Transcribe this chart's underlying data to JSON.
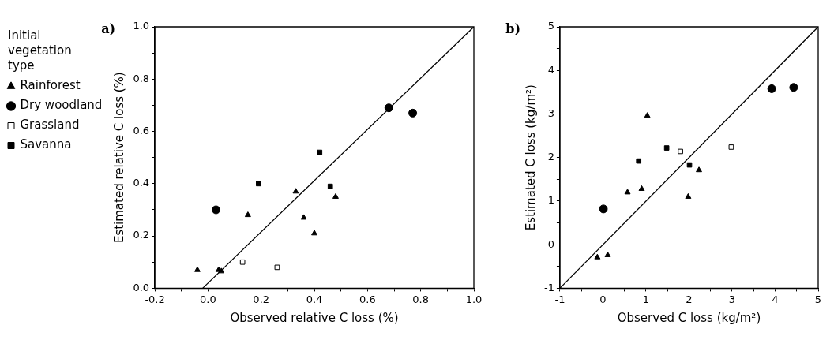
{
  "chart_data": [
    {
      "type": "scatter",
      "title": "a)",
      "xlabel": "Observed relative C loss (%)",
      "ylabel": "Estimated relative C loss (%)",
      "legend_title": "Initial vegetation type",
      "legend": "left",
      "grid": false,
      "xlim": [
        -0.2,
        1.0
      ],
      "ylim": [
        0.0,
        1.0
      ],
      "xticks": [
        {
          "value": -0.2,
          "label": "-0.2"
        },
        {
          "value": -0.1,
          "label": null
        },
        {
          "value": 0,
          "label": "0.0"
        },
        {
          "value": 0.1,
          "label": null
        },
        {
          "value": 0.2,
          "label": "0.2"
        },
        {
          "value": 0.3,
          "label": null
        },
        {
          "value": 0.4,
          "label": "0.4"
        },
        {
          "value": 0.5,
          "label": null
        },
        {
          "value": 0.6,
          "label": "0.6"
        },
        {
          "value": 0.7,
          "label": null
        },
        {
          "value": 0.8,
          "label": "0.8"
        },
        {
          "value": 0.9,
          "label": null
        },
        {
          "value": 1.0,
          "label": "1.0"
        }
      ],
      "yticks": [
        {
          "value": 0,
          "label": "0.0"
        },
        {
          "value": 0.1,
          "label": null
        },
        {
          "value": 0.2,
          "label": "0.2"
        },
        {
          "value": 0.3,
          "label": null
        },
        {
          "value": 0.4,
          "label": "0.4"
        },
        {
          "value": 0.5,
          "label": null
        },
        {
          "value": 0.6,
          "label": "0.6"
        },
        {
          "value": 0.7,
          "label": null
        },
        {
          "value": 0.8,
          "label": "0.8"
        },
        {
          "value": 0.9,
          "label": null
        },
        {
          "value": 1.0,
          "label": "1.0"
        }
      ],
      "series": [
        {
          "name": "Rainforest",
          "color": "#000000",
          "marker": "triangle",
          "x": [
            -0.04,
            0.04,
            0.05,
            0.15,
            0.33,
            0.36,
            0.4,
            0.48
          ],
          "values": [
            0.07,
            0.07,
            0.065,
            0.28,
            0.37,
            0.27,
            0.21,
            0.35
          ]
        },
        {
          "name": "Dry woodland",
          "color": "#000000",
          "marker": "circle",
          "x": [
            0.03,
            0.68,
            0.77
          ],
          "values": [
            0.3,
            0.69,
            0.67
          ]
        },
        {
          "name": "Grassland",
          "color": "#ffffff",
          "marker": "square",
          "x": [
            0.13,
            0.26
          ],
          "values": [
            0.1,
            0.08
          ]
        },
        {
          "name": "Savanna",
          "color": "#000000",
          "marker": "square",
          "x": [
            0.19,
            0.42,
            0.46
          ],
          "values": [
            0.4,
            0.52,
            0.39
          ]
        },
        {
          "type": "line",
          "color": "#000000",
          "marker": "none",
          "line_style": "solid",
          "x": [
            -0.02,
            1.0
          ],
          "values": [
            0,
            1.0
          ]
        }
      ]
    },
    {
      "type": "scatter",
      "title": "b)",
      "xlabel": "Observed C loss (kg/m²)",
      "ylabel": "Estimated C loss (kg/m²)",
      "legend": false,
      "grid": false,
      "xlim": [
        -1,
        5
      ],
      "ylim": [
        -1,
        5
      ],
      "xticks": [
        -1,
        {
          "value": -0.5,
          "label": null
        },
        0,
        {
          "value": 0.5,
          "label": null
        },
        1,
        {
          "value": 1.5,
          "label": null
        },
        2,
        {
          "value": 2.5,
          "label": null
        },
        3,
        {
          "value": 3.5,
          "label": null
        },
        4,
        {
          "value": 4.5,
          "label": null
        },
        5
      ],
      "yticks": [
        -1,
        {
          "value": -0.5,
          "label": null
        },
        0,
        {
          "value": 0.5,
          "label": null
        },
        1,
        {
          "value": 1.5,
          "label": null
        },
        2,
        {
          "value": 2.5,
          "label": null
        },
        3,
        {
          "value": 3.5,
          "label": null
        },
        4,
        {
          "value": 4.5,
          "label": null
        },
        5
      ],
      "series": [
        {
          "color": "#000000",
          "marker": "triangle",
          "x": [
            -0.13,
            0.11,
            0.57,
            0.9,
            1.03,
            1.98,
            2.23
          ],
          "values": [
            -0.29,
            -0.24,
            1.2,
            1.28,
            2.96,
            1.1,
            1.71
          ]
        },
        {
          "color": "#000000",
          "marker": "circle",
          "x": [
            0.01,
            3.92,
            4.43
          ],
          "values": [
            0.82,
            3.58,
            3.61
          ]
        },
        {
          "color": "#ffffff",
          "marker": "square",
          "x": [
            1.8,
            2.98
          ],
          "values": [
            2.14,
            2.24
          ]
        },
        {
          "color": "#000000",
          "marker": "square",
          "x": [
            0.83,
            1.48,
            2.01
          ],
          "values": [
            1.92,
            2.22,
            1.83
          ]
        },
        {
          "type": "line",
          "color": "#000000",
          "marker": "none",
          "line_style": "solid",
          "x": [
            -1,
            5
          ],
          "values": [
            -1,
            5
          ]
        }
      ]
    }
  ]
}
